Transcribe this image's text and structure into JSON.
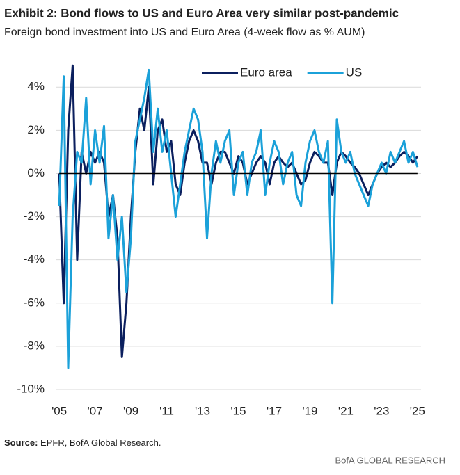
{
  "chart_data": {
    "type": "line",
    "title": "Exhibit 2: Bond flows to US and Euro Area very similar post-pandemic",
    "subtitle": "Foreign bond investment into US and Euro Area (4-week flow as % AUM)",
    "source_label": "Source:",
    "source_text": "EPFR, BofA Global Research.",
    "footer": "BofA GLOBAL RESEARCH",
    "legend": "top-center",
    "grid": true,
    "xlim": [
      2004.8,
      2025.2
    ],
    "ylim": [
      -10,
      5.2
    ],
    "xticks": [
      {
        "value": 2005,
        "label": "'05"
      },
      {
        "value": 2007,
        "label": "'07"
      },
      {
        "value": 2009,
        "label": "'09"
      },
      {
        "value": 2011,
        "label": "'11"
      },
      {
        "value": 2013,
        "label": "'13"
      },
      {
        "value": 2015,
        "label": "'15"
      },
      {
        "value": 2017,
        "label": "'17"
      },
      {
        "value": 2019,
        "label": "'19"
      },
      {
        "value": 2021,
        "label": "'21"
      },
      {
        "value": 2023,
        "label": "'23"
      },
      {
        "value": 2025,
        "label": "'25"
      }
    ],
    "yticks": [
      {
        "value": 4,
        "label": "4%"
      },
      {
        "value": 2,
        "label": "2%"
      },
      {
        "value": 0,
        "label": "0%"
      },
      {
        "value": -2,
        "label": "-2%"
      },
      {
        "value": -4,
        "label": "-4%"
      },
      {
        "value": -6,
        "label": "-6%"
      },
      {
        "value": -8,
        "label": "-8%"
      },
      {
        "value": -10,
        "label": "-10%"
      }
    ],
    "x": [
      2005,
      2005.25,
      2005.5,
      2005.75,
      2006,
      2006.25,
      2006.5,
      2006.75,
      2007,
      2007.25,
      2007.5,
      2007.75,
      2008,
      2008.25,
      2008.5,
      2008.75,
      2009,
      2009.25,
      2009.5,
      2009.75,
      2010,
      2010.25,
      2010.5,
      2010.75,
      2011,
      2011.25,
      2011.5,
      2011.75,
      2012,
      2012.25,
      2012.5,
      2012.75,
      2013,
      2013.25,
      2013.5,
      2013.75,
      2014,
      2014.25,
      2014.5,
      2014.75,
      2015,
      2015.25,
      2015.5,
      2015.75,
      2016,
      2016.25,
      2016.5,
      2016.75,
      2017,
      2017.25,
      2017.5,
      2017.75,
      2018,
      2018.25,
      2018.5,
      2018.75,
      2019,
      2019.25,
      2019.5,
      2019.75,
      2020,
      2020.25,
      2020.5,
      2020.75,
      2021,
      2021.25,
      2021.5,
      2021.75,
      2022,
      2022.25,
      2022.5,
      2022.75,
      2023,
      2023.25,
      2023.5,
      2023.75,
      2024,
      2024.25,
      2024.5,
      2024.75,
      2025
    ],
    "series": [
      {
        "name": "Euro area",
        "color": "#0b1f5e",
        "values": [
          0,
          -6,
          2,
          5,
          -4,
          1,
          0,
          1,
          0.5,
          1,
          0.5,
          -2,
          -1,
          -3,
          -8.5,
          -6,
          -2,
          1,
          3,
          2,
          4,
          -0.5,
          2,
          2.5,
          1,
          1.5,
          -0.5,
          -1,
          0.5,
          1.5,
          2,
          1.5,
          0.5,
          0.5,
          -0.5,
          0.5,
          1,
          1,
          0.5,
          0,
          0.8,
          0.5,
          -0.5,
          0,
          0.5,
          0.8,
          0.5,
          -0.5,
          0.5,
          0.8,
          0.5,
          0.3,
          0.5,
          0,
          -0.5,
          -0.3,
          0.5,
          1,
          0.8,
          0.5,
          0.5,
          -1,
          0.5,
          1,
          0.8,
          0.5,
          0.3,
          0,
          -0.5,
          -1,
          -0.5,
          0,
          0.3,
          0.5,
          0.3,
          0.5,
          0.8,
          1,
          0.8,
          0.5,
          0.8
        ]
      },
      {
        "name": "US",
        "color": "#1ba1d9",
        "values": [
          -1.5,
          4.5,
          -9,
          -2,
          1,
          0.5,
          3.5,
          -0.5,
          2,
          0.5,
          2.2,
          -3,
          -1,
          -4,
          -2,
          -5.5,
          -3,
          1.5,
          2.5,
          3.5,
          4.8,
          1,
          3,
          1,
          2,
          0,
          -2,
          -0.5,
          1,
          2,
          3,
          2.5,
          1,
          -3,
          0,
          1.5,
          0.5,
          1.5,
          2,
          -1,
          0.5,
          1,
          -1,
          0.5,
          1,
          2,
          -1,
          0.5,
          1.5,
          1,
          -0.5,
          0.5,
          1,
          -1,
          -1.5,
          0.5,
          1.5,
          2,
          1,
          0.5,
          1.5,
          -6,
          2.5,
          1,
          0.5,
          1,
          0,
          -0.5,
          -1,
          -1.5,
          -0.5,
          0,
          0.5,
          0,
          1,
          0.5,
          1,
          1.5,
          0.5,
          1,
          0.3
        ]
      }
    ]
  }
}
